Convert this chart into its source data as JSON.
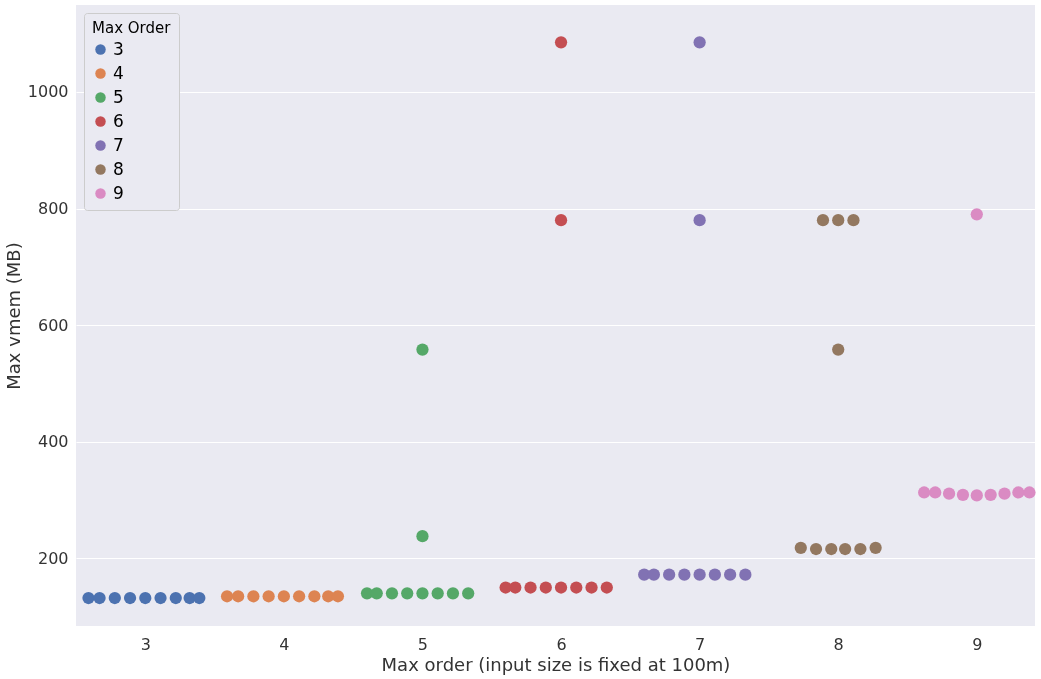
{
  "chart_data": {
    "type": "scatter",
    "xlabel": "Max order (input size is fixed at 100m)",
    "ylabel": "Max vmem (MB)",
    "legend_title": "Max Order",
    "xlim": [
      2.5,
      9.42
    ],
    "xticks": [
      3,
      4,
      5,
      6,
      7,
      8,
      9
    ],
    "ylim": [
      84,
      1149
    ],
    "yticks": [
      200,
      400,
      600,
      800,
      1000
    ],
    "grid": "y",
    "legend": "top left",
    "marker": "circle",
    "series": [
      {
        "name": "3",
        "color": "#4c72b0",
        "x": [
          2.59,
          2.67,
          2.78,
          2.89,
          3.0,
          3.11,
          3.22,
          3.32,
          3.39
        ],
        "values": [
          132,
          132,
          132,
          132,
          132,
          132,
          132,
          132,
          132
        ]
      },
      {
        "name": "4",
        "color": "#dd8452",
        "x": [
          3.59,
          3.67,
          3.78,
          3.89,
          4.0,
          4.11,
          4.22,
          4.32,
          4.39
        ],
        "values": [
          135,
          135,
          135,
          135,
          135,
          135,
          135,
          135,
          135
        ]
      },
      {
        "name": "5",
        "color": "#55a868",
        "x": [
          4.6,
          4.67,
          4.78,
          4.89,
          5.0,
          5.11,
          5.22,
          5.33,
          5.0,
          5.0
        ],
        "values": [
          140,
          140,
          140,
          140,
          140,
          140,
          140,
          140,
          238,
          558
        ]
      },
      {
        "name": "6",
        "color": "#c44e52",
        "x": [
          5.6,
          5.67,
          5.78,
          5.89,
          6.0,
          6.11,
          6.22,
          6.33,
          6.0,
          6.0
        ],
        "values": [
          150,
          150,
          150,
          150,
          150,
          150,
          150,
          150,
          780,
          1085
        ]
      },
      {
        "name": "7",
        "color": "#8172b3",
        "x": [
          6.6,
          6.67,
          6.78,
          6.89,
          7.0,
          7.11,
          7.22,
          7.33,
          7.0,
          7.0
        ],
        "values": [
          172,
          172,
          172,
          172,
          172,
          172,
          172,
          172,
          780,
          1085
        ]
      },
      {
        "name": "8",
        "color": "#937860",
        "x": [
          7.73,
          7.84,
          7.95,
          8.05,
          8.16,
          8.27,
          8.0,
          7.89,
          8.0,
          8.11
        ],
        "values": [
          218,
          216,
          216,
          216,
          216,
          218,
          558,
          780,
          780,
          780
        ]
      },
      {
        "name": "9",
        "color": "#da8bc3",
        "x": [
          8.62,
          8.7,
          8.8,
          8.9,
          9.0,
          9.1,
          9.2,
          9.3,
          9.38,
          9.0
        ],
        "values": [
          313,
          313,
          311,
          309,
          308,
          309,
          311,
          313,
          313,
          790
        ]
      }
    ]
  }
}
